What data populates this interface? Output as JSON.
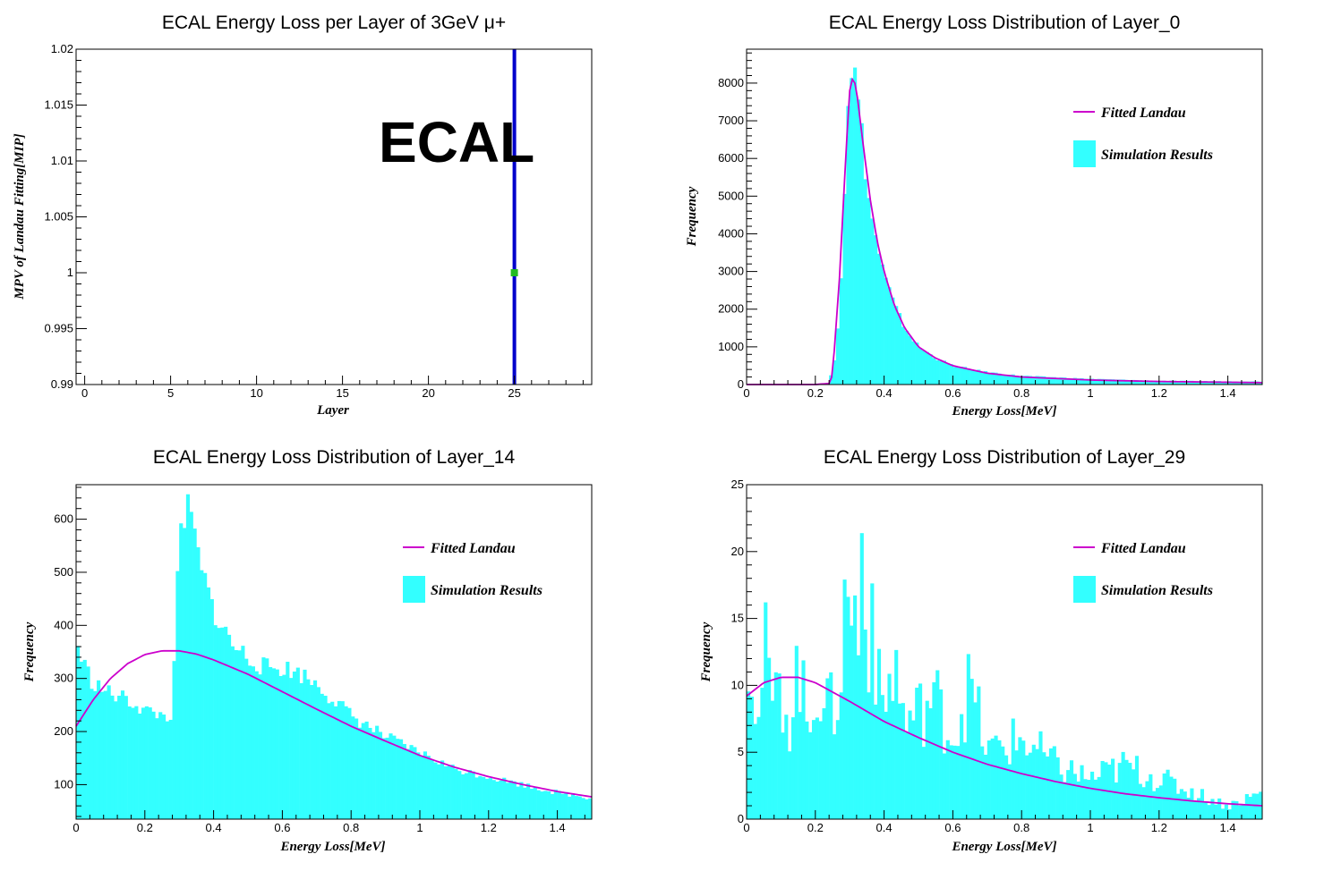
{
  "colors": {
    "hist": "#33ffff",
    "fit": "#cc00cc",
    "marker": "#22bb22",
    "line": "#0000cc",
    "axis": "#000000"
  },
  "chart_data": [
    {
      "type": "scatter",
      "title": "ECAL Energy Loss per Layer of 3GeV μ+",
      "xlabel": "Layer",
      "ylabel": "MPV of Landau Fitting[MIP]",
      "xlim": [
        -0.5,
        29.5
      ],
      "ylim": [
        0.99,
        1.02
      ],
      "xticks": [
        0,
        5,
        10,
        15,
        20,
        25
      ],
      "xtick_labels": [
        "0",
        "5",
        "10",
        "15",
        "20",
        "25"
      ],
      "yticks": [
        0.99,
        0.995,
        1,
        1.005,
        1.01,
        1.015,
        1.02
      ],
      "ytick_labels": [
        "0.99",
        "0.995",
        "1",
        "1.005",
        "1.01",
        "1.015",
        "1.02"
      ],
      "points": [
        {
          "x": 25,
          "y": 1.0
        }
      ],
      "vertical_line_x": 25,
      "annotation": "ECAL"
    },
    {
      "type": "bar",
      "title": "ECAL Energy Loss Distribution of Layer_0",
      "xlabel": "Energy Loss[MeV]",
      "ylabel": "Frequency",
      "xlim": [
        0,
        1.5
      ],
      "ylim": [
        0,
        8900
      ],
      "xticks": [
        0,
        0.2,
        0.4,
        0.6,
        0.8,
        1,
        1.2,
        1.4
      ],
      "xtick_labels": [
        "0",
        "0.2",
        "0.4",
        "0.6",
        "0.8",
        "1",
        "1.2",
        "1.4"
      ],
      "yticks": [
        0,
        1000,
        2000,
        3000,
        4000,
        5000,
        6000,
        7000,
        8000
      ],
      "ytick_labels": [
        "0",
        "1000",
        "2000",
        "3000",
        "4000",
        "5000",
        "6000",
        "7000",
        "8000"
      ],
      "legend": [
        "Fitted Landau",
        "Simulation Results"
      ],
      "legend_position": "top-right",
      "histogram": {
        "x": [
          0.0,
          0.2,
          0.24,
          0.26,
          0.28,
          0.29,
          0.3,
          0.31,
          0.32,
          0.33,
          0.34,
          0.35,
          0.36,
          0.38,
          0.4,
          0.43,
          0.46,
          0.5,
          0.55,
          0.6,
          0.7,
          0.8,
          1.0,
          1.2,
          1.5
        ],
        "y": [
          0,
          0,
          30,
          900,
          3600,
          6900,
          8400,
          8450,
          7900,
          7100,
          6200,
          5300,
          4600,
          3700,
          2900,
          2100,
          1500,
          1000,
          700,
          500,
          330,
          230,
          150,
          100,
          80
        ]
      },
      "fit": {
        "x": [
          0.0,
          0.2,
          0.24,
          0.25,
          0.27,
          0.29,
          0.3,
          0.31,
          0.32,
          0.34,
          0.36,
          0.38,
          0.4,
          0.43,
          0.46,
          0.5,
          0.55,
          0.6,
          0.7,
          0.8,
          1.0,
          1.2,
          1.5
        ],
        "y": [
          0,
          0,
          30,
          250,
          2800,
          6300,
          7800,
          8200,
          7800,
          6300,
          4900,
          3800,
          3000,
          2100,
          1500,
          1000,
          700,
          500,
          300,
          200,
          120,
          80,
          50
        ]
      }
    },
    {
      "type": "bar",
      "title": "ECAL Energy Loss Distribution of Layer_14",
      "xlabel": "Energy Loss[MeV]",
      "ylabel": "Frequency",
      "xlim": [
        0,
        1.5
      ],
      "ylim": [
        35,
        665
      ],
      "xticks": [
        0,
        0.2,
        0.4,
        0.6,
        0.8,
        1,
        1.2,
        1.4
      ],
      "xtick_labels": [
        "0",
        "0.2",
        "0.4",
        "0.6",
        "0.8",
        "1",
        "1.2",
        "1.4"
      ],
      "yticks": [
        100,
        200,
        300,
        400,
        500,
        600
      ],
      "ytick_labels": [
        "100",
        "200",
        "300",
        "400",
        "500",
        "600"
      ],
      "legend": [
        "Fitted Landau",
        "Simulation Results"
      ],
      "legend_position": "top-right",
      "histogram": {
        "x": [
          0.0,
          0.02,
          0.05,
          0.08,
          0.1,
          0.15,
          0.2,
          0.25,
          0.28,
          0.29,
          0.3,
          0.32,
          0.34,
          0.36,
          0.38,
          0.4,
          0.43,
          0.46,
          0.5,
          0.55,
          0.6,
          0.65,
          0.7,
          0.8,
          0.9,
          1.0,
          1.1,
          1.2,
          1.3,
          1.4,
          1.5
        ],
        "y": [
          370,
          330,
          290,
          280,
          270,
          260,
          240,
          230,
          230,
          400,
          560,
          620,
          590,
          510,
          470,
          430,
          390,
          360,
          340,
          320,
          320,
          310,
          290,
          230,
          190,
          160,
          130,
          115,
          100,
          85,
          75
        ]
      },
      "fit": {
        "x": [
          0.0,
          0.05,
          0.1,
          0.15,
          0.2,
          0.25,
          0.3,
          0.35,
          0.4,
          0.5,
          0.6,
          0.7,
          0.8,
          0.9,
          1.0,
          1.1,
          1.2,
          1.3,
          1.4,
          1.5
        ],
        "y": [
          210,
          260,
          300,
          328,
          345,
          352,
          352,
          346,
          335,
          308,
          275,
          242,
          210,
          182,
          155,
          133,
          115,
          100,
          87,
          77
        ]
      }
    },
    {
      "type": "bar",
      "title": "ECAL Energy Loss Distribution of Layer_29",
      "xlabel": "Energy Loss[MeV]",
      "ylabel": "Frequency",
      "xlim": [
        0,
        1.5
      ],
      "ylim": [
        0,
        25
      ],
      "xticks": [
        0,
        0.2,
        0.4,
        0.6,
        0.8,
        1,
        1.2,
        1.4
      ],
      "xtick_labels": [
        "0",
        "0.2",
        "0.4",
        "0.6",
        "0.8",
        "1",
        "1.2",
        "1.4"
      ],
      "yticks": [
        0,
        5,
        10,
        15,
        20,
        25
      ],
      "ytick_labels": [
        "0",
        "5",
        "10",
        "15",
        "20",
        "25"
      ],
      "legend": [
        "Fitted Landau",
        "Simulation Results"
      ],
      "legend_position": "top-right",
      "histogram": {
        "x": [
          0.0,
          0.01,
          0.02,
          0.03,
          0.05,
          0.08,
          0.1,
          0.13,
          0.15,
          0.18,
          0.2,
          0.22,
          0.25,
          0.27,
          0.29,
          0.3,
          0.31,
          0.32,
          0.33,
          0.34,
          0.35,
          0.36,
          0.38,
          0.4,
          0.43,
          0.46,
          0.5,
          0.55,
          0.6,
          0.65,
          0.7,
          0.8,
          0.9,
          1.0,
          1.1,
          1.2,
          1.3,
          1.4,
          1.5
        ],
        "y": [
          18,
          10,
          14,
          5,
          13,
          8,
          10,
          7,
          12,
          6,
          11,
          9,
          8,
          10,
          17,
          15,
          19,
          11,
          16,
          24,
          9,
          19,
          10,
          8,
          12,
          7,
          8,
          9,
          6,
          10,
          5,
          6,
          4,
          3,
          4,
          3,
          2,
          1,
          2
        ]
      },
      "fit": {
        "x": [
          0.0,
          0.05,
          0.1,
          0.15,
          0.2,
          0.3,
          0.4,
          0.5,
          0.6,
          0.7,
          0.8,
          0.9,
          1.0,
          1.1,
          1.2,
          1.3,
          1.4,
          1.5
        ],
        "y": [
          9.2,
          10.2,
          10.6,
          10.6,
          10.2,
          8.8,
          7.3,
          6.1,
          5.0,
          4.1,
          3.4,
          2.8,
          2.3,
          1.9,
          1.6,
          1.35,
          1.15,
          1.0
        ]
      }
    }
  ]
}
